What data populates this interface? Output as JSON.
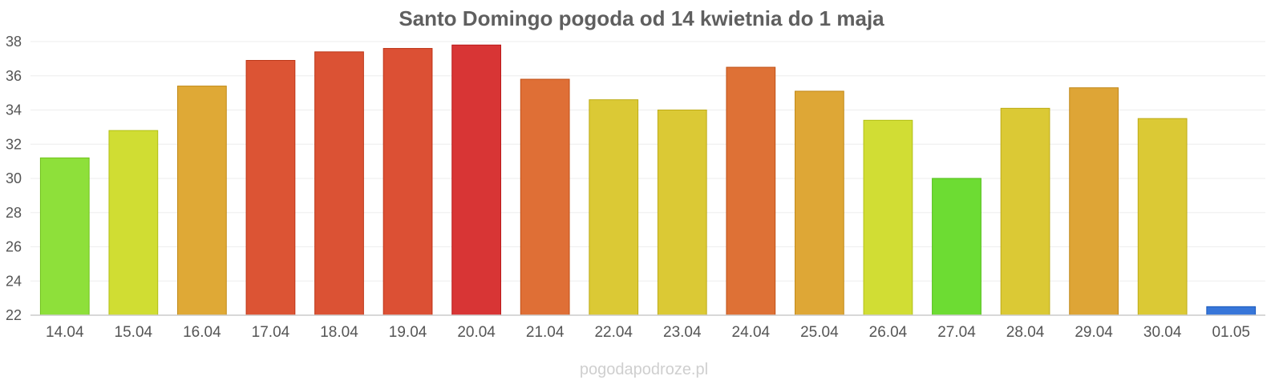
{
  "chart_data": {
    "type": "bar",
    "title": "Santo Domingo pogoda od 14 kwietnia do 1 maja",
    "xlabel": "",
    "ylabel": "",
    "ylim": [
      22,
      38
    ],
    "yticks": [
      22,
      24,
      26,
      28,
      30,
      32,
      34,
      36,
      38
    ],
    "grid": true,
    "categories": [
      "14.04",
      "15.04",
      "16.04",
      "17.04",
      "18.04",
      "19.04",
      "20.04",
      "21.04",
      "22.04",
      "23.04",
      "24.04",
      "25.04",
      "26.04",
      "27.04",
      "28.04",
      "29.04",
      "30.04",
      "01.05"
    ],
    "values": [
      31.2,
      32.8,
      35.4,
      36.9,
      37.4,
      37.6,
      37.8,
      35.8,
      34.6,
      34.0,
      36.5,
      35.1,
      33.4,
      30.0,
      34.1,
      35.3,
      33.5,
      22.5
    ],
    "colors": [
      "#8ee03a",
      "#d0dd33",
      "#dfa936",
      "#dc5434",
      "#db5234",
      "#dc5034",
      "#d83535",
      "#df6f36",
      "#dbc935",
      "#dbc935",
      "#de7136",
      "#dea736",
      "#d1dd34",
      "#6ddc33",
      "#dbc935",
      "#dea536",
      "#dbc935",
      "#3776d9"
    ]
  },
  "watermark": "pogodapodroze.pl"
}
